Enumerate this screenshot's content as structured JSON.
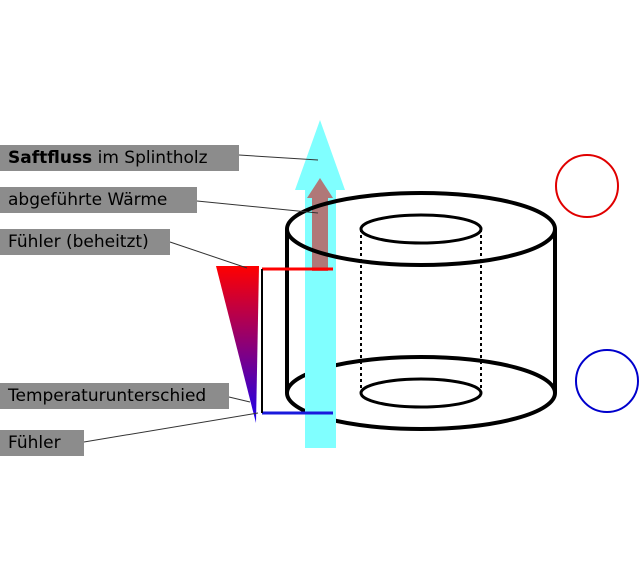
{
  "labels": {
    "saftfluss_bold": "Saftfluss",
    "saftfluss_rest": " im Splintholz",
    "waerme": "abgeführte Wärme",
    "fuehler_beheizt": "Fühler (beheitzt)",
    "temperaturunterschied": "Temperaturunterschied",
    "fuehler": "Fühler"
  },
  "colors": {
    "sapflow_arrow": "#80ffff",
    "heat_arrow": "#b07878",
    "hot": "#ff0000",
    "cold": "#0000cc",
    "label_bg": "#8c8c8c"
  }
}
